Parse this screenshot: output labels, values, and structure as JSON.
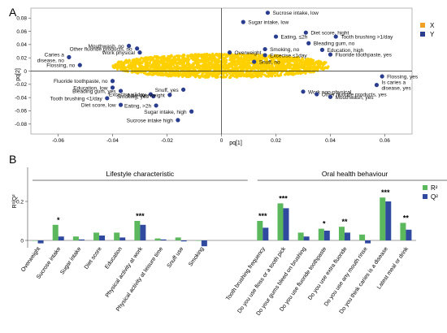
{
  "chart_data": [
    {
      "type": "scatter",
      "panel_label": "A",
      "xlabel": "pq[1]",
      "ylabel": "pq[2]",
      "xlim": [
        -0.07,
        0.07
      ],
      "ylim": [
        -0.095,
        0.095
      ],
      "xticks": [
        -0.06,
        -0.04,
        -0.02,
        0,
        0.02,
        0.04,
        0.06
      ],
      "xtick_labels": [
        "-0.06",
        "-0.04",
        "-0.02",
        "0",
        "0.02",
        "0.04",
        "0.06"
      ],
      "yticks": [
        -0.08,
        -0.06,
        -0.04,
        -0.02,
        0,
        0.02,
        0.04,
        0.06,
        0.08
      ],
      "ytick_labels": [
        "-0.08",
        "-0.06",
        "-0.04",
        "-0.02",
        "0",
        "0.02",
        "0.04",
        "0.06",
        "0.08"
      ],
      "legend": {
        "position": "top-right",
        "entries": [
          {
            "name": "X",
            "color": "#F0A022"
          },
          {
            "name": "Y",
            "color": "#2A3D8F"
          }
        ]
      },
      "x_cloud": {
        "center": [
          0.0,
          0.008
        ],
        "rx": 0.04,
        "ry": 0.018,
        "color": "#FFD000",
        "count": 2000
      },
      "y_points": [
        {
          "x": 0.017,
          "y": 0.088,
          "label": "Sucrose intake, low"
        },
        {
          "x": 0.008,
          "y": 0.074,
          "label": "Sugar intake, low"
        },
        {
          "x": 0.031,
          "y": 0.058,
          "label": "Diet score, hight"
        },
        {
          "x": 0.042,
          "y": 0.052,
          "label": "Tooth brushing >1/day"
        },
        {
          "x": 0.02,
          "y": 0.052,
          "label": "Eating, ≤2h"
        },
        {
          "x": 0.032,
          "y": 0.042,
          "label": "Bleading gum, no"
        },
        {
          "x": 0.016,
          "y": 0.033,
          "label": "Smoking, no"
        },
        {
          "x": 0.037,
          "y": 0.032,
          "label": "Education, high"
        },
        {
          "x": 0.016,
          "y": 0.024,
          "label": "Excecise ≤1day"
        },
        {
          "x": 0.04,
          "y": 0.025,
          "label": "Fluoride toothpaste, yes"
        },
        {
          "x": 0.003,
          "y": 0.028,
          "label": "Overweight"
        },
        {
          "x": 0.012,
          "y": 0.014,
          "label": "Snuff, no"
        },
        {
          "x": -0.034,
          "y": 0.038,
          "label": "Mouthwash, no"
        },
        {
          "x": -0.031,
          "y": 0.034,
          "label": "Other fluoride products, no"
        },
        {
          "x": -0.03,
          "y": 0.028,
          "label": "Work physical"
        },
        {
          "x": -0.056,
          "y": 0.021,
          "label": "Caries a disease, no"
        },
        {
          "x": -0.052,
          "y": 0.009,
          "label": "Flossing, no"
        },
        {
          "x": -0.04,
          "y": -0.015,
          "label": "Fluoride toothpaste, no"
        },
        {
          "x": -0.014,
          "y": -0.028,
          "label": "Snuff, yes"
        },
        {
          "x": -0.026,
          "y": -0.035,
          "label": "Excecise ≤1day"
        },
        {
          "x": -0.04,
          "y": -0.025,
          "label": "Education, low"
        },
        {
          "x": -0.037,
          "y": -0.03,
          "label": "Bleading gum, yes"
        },
        {
          "x": -0.025,
          "y": -0.038,
          "label": "Smoking, yes"
        },
        {
          "x": -0.019,
          "y": -0.036,
          "label": "Non-overweight"
        },
        {
          "x": -0.042,
          "y": -0.041,
          "label": "Tooth brushing <1/day"
        },
        {
          "x": -0.037,
          "y": -0.051,
          "label": "Diet score, low"
        },
        {
          "x": -0.024,
          "y": -0.052,
          "label": "Eating, >2h"
        },
        {
          "x": -0.011,
          "y": -0.061,
          "label": "Sugar intake, high"
        },
        {
          "x": -0.016,
          "y": -0.074,
          "label": "Sucrose intake high"
        },
        {
          "x": 0.03,
          "y": -0.031,
          "label": "Work non-physical"
        },
        {
          "x": 0.035,
          "y": -0.035,
          "label": "Other fluoride products, yes"
        },
        {
          "x": 0.04,
          "y": -0.039,
          "label": "Mouthwash, yes"
        },
        {
          "x": 0.059,
          "y": -0.008,
          "label": "Flossing, yes"
        },
        {
          "x": 0.057,
          "y": -0.021,
          "label": "Is caries a disease, yes"
        }
      ]
    },
    {
      "type": "bar",
      "panel_label": "B",
      "ylabel": "R²/Q²",
      "ylim": [
        -0.04,
        0.3
      ],
      "yticks": [
        0,
        0.2
      ],
      "ytick_labels": [
        "0",
        "0.2"
      ],
      "legend": {
        "position": "top-right",
        "entries": [
          {
            "name": "R²",
            "color": "#5BB85C"
          },
          {
            "name": "Q²",
            "color": "#2F4A9E"
          }
        ]
      },
      "groups": [
        {
          "name": "Lifestyle characteristic",
          "start": 0,
          "end": 10
        },
        {
          "name": "Oral health behaviour",
          "start": 11,
          "end": 20
        }
      ],
      "categories": [
        "Overweight",
        "Sucrose intake",
        "Sugar intake",
        "Diet score",
        "Education",
        "Physical activity at work",
        "Physical activity at leisure time",
        "Snuff use",
        "Smoking",
        "Tooth brushing frequency",
        "Do you use floss or a tooth pick",
        "Do your gums bleed on brushing",
        "Do you use fluoride toothpaste",
        "Do you use extra fluoride",
        "Do you use any mouth rinse",
        "Do you think caries is a disease",
        "Latest meal or drink"
      ],
      "category_slots": [
        0,
        1,
        2,
        3,
        4,
        5,
        6,
        7,
        8,
        11,
        12,
        13,
        14,
        15,
        16,
        17,
        18
      ],
      "series": [
        {
          "name": "R²",
          "values": [
            0.0,
            0.08,
            0.02,
            0.04,
            0.04,
            0.1,
            0.01,
            0.015,
            0.0,
            0.1,
            0.19,
            0.04,
            0.06,
            0.07,
            0.03,
            0.22,
            0.09
          ]
        },
        {
          "name": "Q²",
          "values": [
            -0.015,
            0.02,
            0.005,
            0.025,
            0.015,
            0.08,
            0.005,
            -0.005,
            -0.03,
            0.065,
            0.165,
            0.02,
            0.05,
            0.04,
            -0.015,
            0.2,
            0.055
          ]
        }
      ],
      "significance": [
        "",
        "*",
        "",
        "",
        "",
        "***",
        "",
        "",
        "",
        "***",
        "***",
        "",
        "*",
        "**",
        "",
        "***",
        "**"
      ]
    }
  ]
}
